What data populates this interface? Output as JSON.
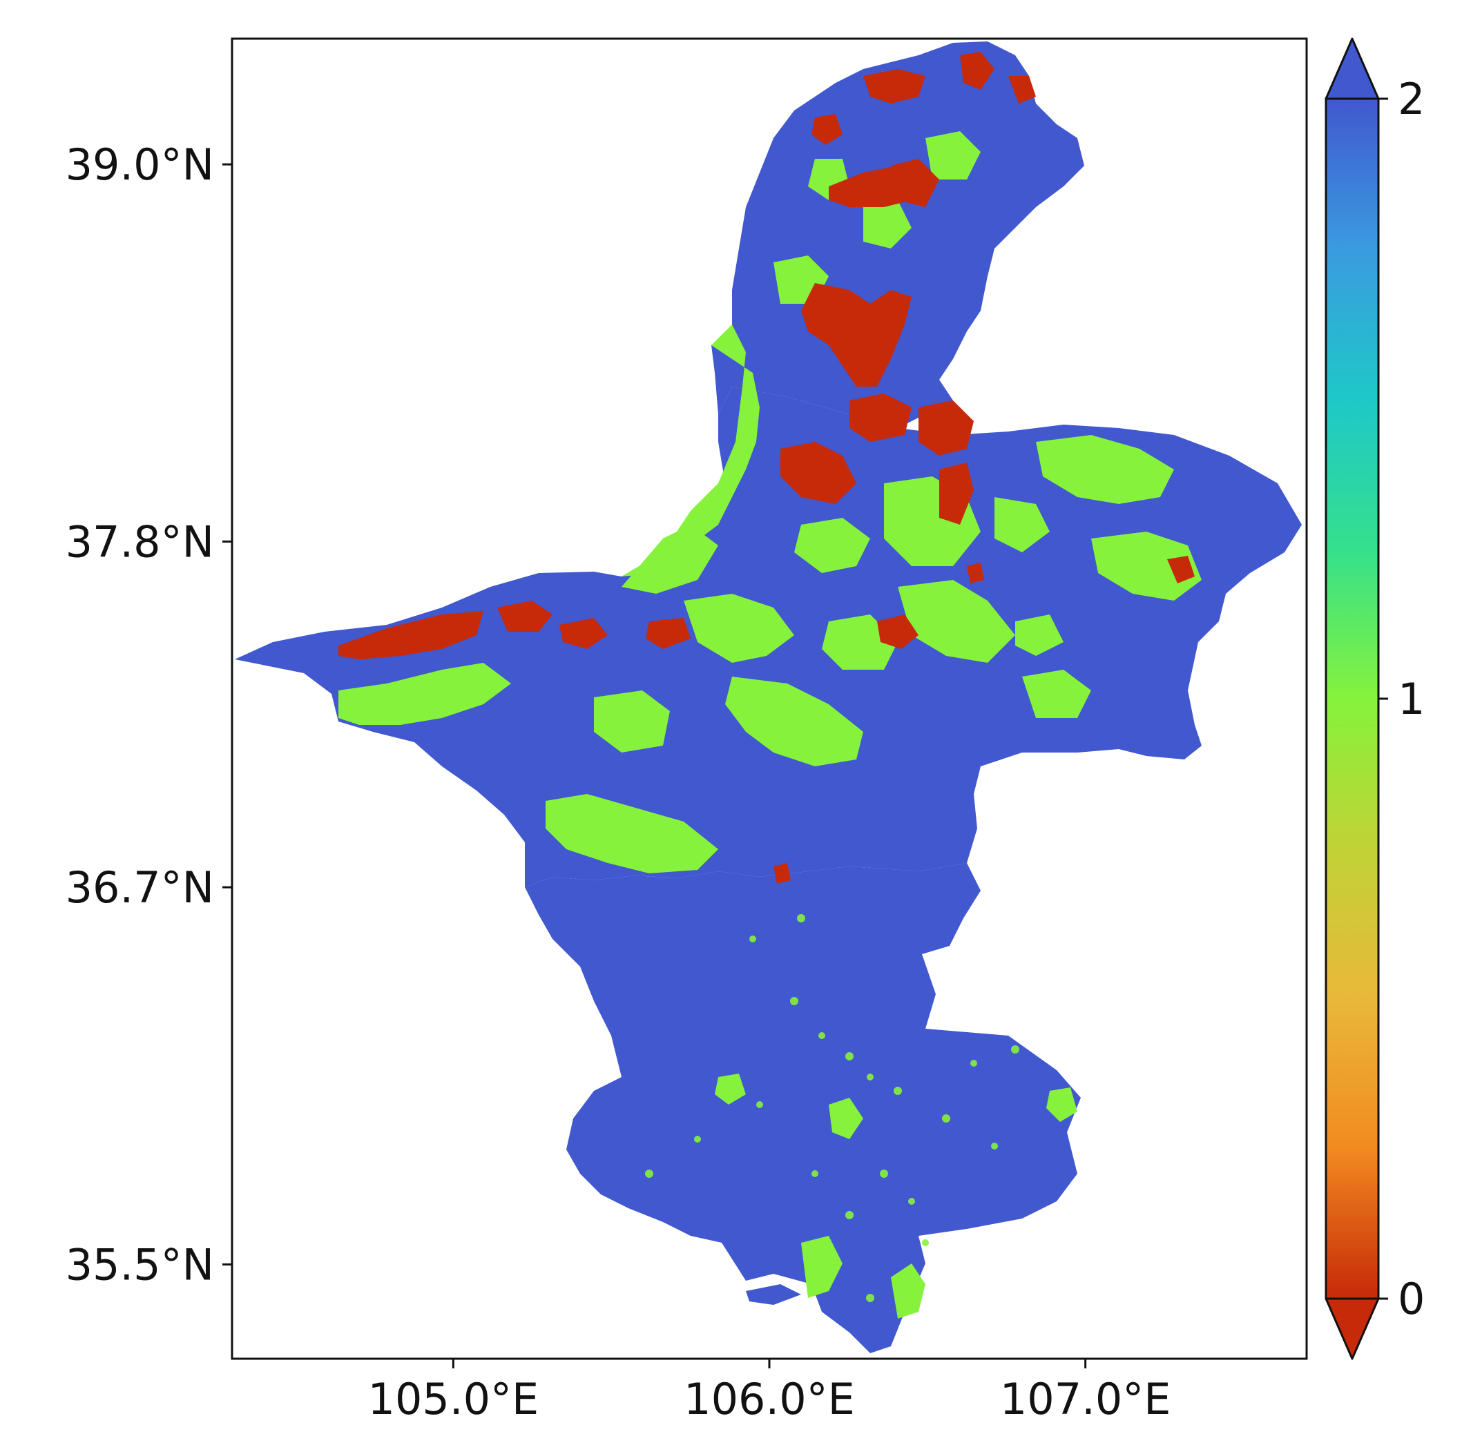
{
  "map": {
    "x_ticks": [
      {
        "lon": 105.0,
        "label": "105.0°E"
      },
      {
        "lon": 106.0,
        "label": "106.0°E"
      },
      {
        "lon": 107.0,
        "label": "107.0°E"
      }
    ],
    "y_ticks": [
      {
        "lat": 39.0,
        "label": "39.0°N"
      },
      {
        "lat": 37.8,
        "label": "37.8°N"
      },
      {
        "lat": 36.7,
        "label": "36.7°N"
      },
      {
        "lat": 35.5,
        "label": "35.5°N"
      }
    ],
    "extent": {
      "lon": [
        104.3,
        107.7
      ],
      "lat": [
        35.2,
        39.4
      ]
    },
    "classes": [
      {
        "value": 0,
        "color": "#c62a08"
      },
      {
        "value": 1,
        "color": "#86f23b"
      },
      {
        "value": 2,
        "color": "#4158cf"
      }
    ]
  },
  "colorbar": {
    "ticks": [
      {
        "value": 2,
        "label": "2"
      },
      {
        "value": 1,
        "label": "1"
      },
      {
        "value": 0,
        "label": "0"
      }
    ],
    "range": [
      0,
      2
    ],
    "extend": "both",
    "colormap": "turbo_r",
    "stops": [
      "#c62a08",
      "#f28a20",
      "#e9b83a",
      "#c2d236",
      "#86f23b",
      "#35e08c",
      "#1ec8c8",
      "#3a9be0",
      "#4158cf"
    ]
  }
}
